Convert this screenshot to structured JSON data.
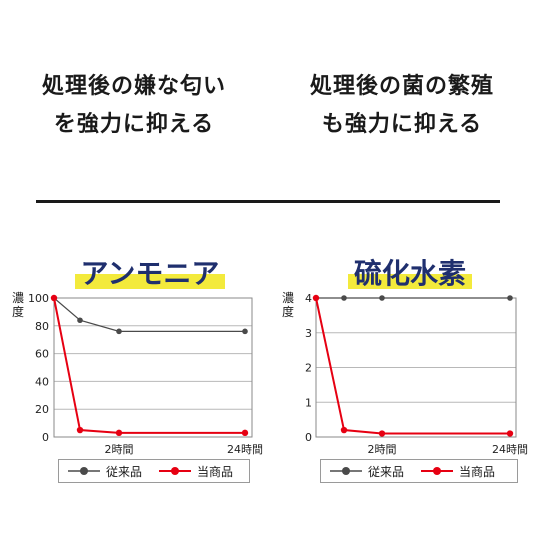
{
  "headlines": {
    "left": [
      "処理後の嫌な匂い",
      "を強力に抑える"
    ],
    "right": [
      "処理後の菌の繁殖",
      "も強力に抑える"
    ]
  },
  "colors": {
    "conventional": "#4a4a4a",
    "ours": "#e60012",
    "title_text": "#1f2f6e",
    "title_highlight": "#f3ea3c"
  },
  "chart_data": [
    {
      "type": "line",
      "title": "アンモニア",
      "ylabel": "濃度",
      "ylim": [
        0,
        100
      ],
      "yticks": [
        "0",
        "20",
        "40",
        "60",
        "80",
        "100"
      ],
      "x_tick_labels": [
        "2時間",
        "24時間"
      ],
      "x": [
        0,
        0.5,
        2,
        24
      ],
      "grid": true,
      "legend": "bottom",
      "series": [
        {
          "name": "従来品",
          "values": [
            100,
            84,
            76,
            76
          ]
        },
        {
          "name": "当商品",
          "values": [
            100,
            5,
            3,
            3
          ]
        }
      ]
    },
    {
      "type": "line",
      "title": "硫化水素",
      "ylabel": "濃度",
      "ylim": [
        0,
        4
      ],
      "yticks": [
        "0",
        "1",
        "2",
        "3",
        "4"
      ],
      "x_tick_labels": [
        "2時間",
        "24時間"
      ],
      "x": [
        0,
        0.5,
        2,
        24
      ],
      "grid": true,
      "legend": "bottom",
      "series": [
        {
          "name": "従来品",
          "values": [
            4,
            4,
            4,
            4
          ]
        },
        {
          "name": "当商品",
          "values": [
            4,
            0.2,
            0.1,
            0.1
          ]
        }
      ]
    }
  ]
}
